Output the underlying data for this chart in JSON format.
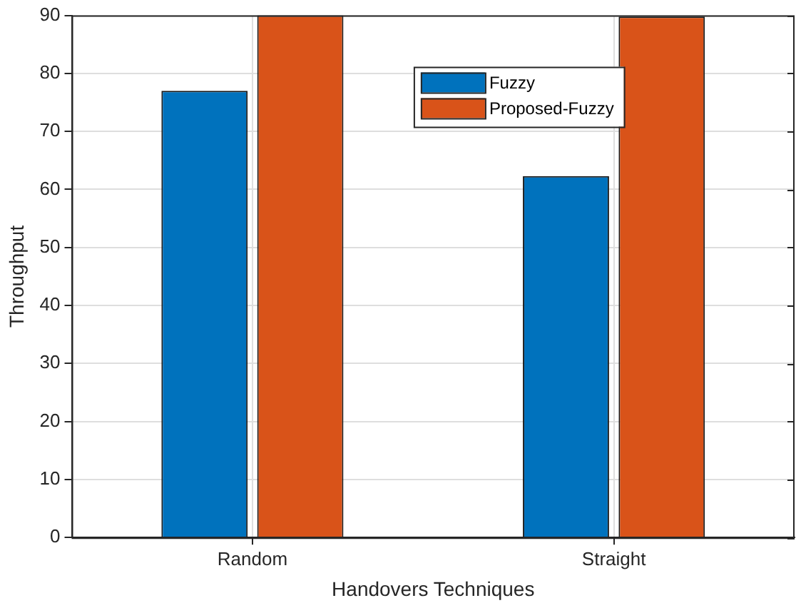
{
  "chart_data": {
    "type": "bar",
    "xlabel": "Handovers Techniques",
    "ylabel": "Throughput",
    "categories": [
      "Random",
      "Straight"
    ],
    "series": [
      {
        "name": "Fuzzy",
        "color": "#0072bd",
        "values": [
          77,
          62.3
        ]
      },
      {
        "name": "Proposed-Fuzzy",
        "color": "#d95319",
        "values": [
          90,
          89.8
        ]
      }
    ],
    "ylim": [
      0,
      90
    ],
    "yticks": [
      0,
      10,
      20,
      30,
      40,
      50,
      60,
      70,
      80,
      90
    ],
    "grid": true,
    "legend": "top"
  }
}
